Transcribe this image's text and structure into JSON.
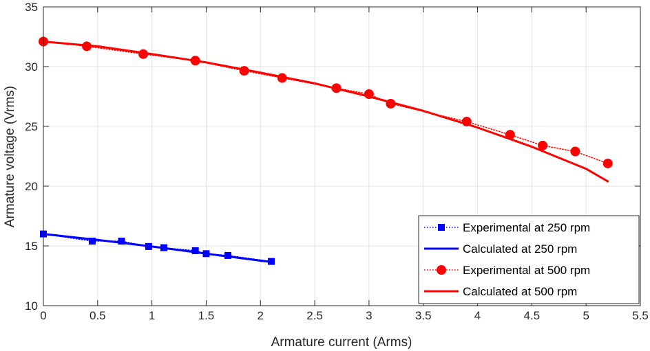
{
  "chart_data": {
    "type": "line",
    "xlabel": "Armature current (Arms)",
    "ylabel": "Armature voltage (Vrms)",
    "xlim": [
      0,
      5.5
    ],
    "ylim": [
      10,
      35
    ],
    "xticks": [
      0,
      0.5,
      1,
      1.5,
      2,
      2.5,
      3,
      3.5,
      4,
      4.5,
      5,
      5.5
    ],
    "xtick_labels": [
      "0",
      "0.5",
      "1",
      "1.5",
      "2",
      "2.5",
      "3",
      "3.5",
      "4",
      "4.5",
      "5",
      "5.5"
    ],
    "yticks": [
      10,
      15,
      20,
      25,
      30,
      35
    ],
    "ytick_labels": [
      "10",
      "15",
      "20",
      "25",
      "30",
      "35"
    ],
    "grid": true,
    "legend_position": "bottom-right",
    "series": [
      {
        "name": "Experimental at 250 rpm",
        "color": "#0000ff",
        "marker": "square",
        "line_style": "dotted",
        "x": [
          0,
          0.45,
          0.72,
          0.97,
          1.11,
          1.4,
          1.5,
          1.7,
          2.1
        ],
        "y": [
          16.0,
          15.4,
          15.4,
          14.95,
          14.85,
          14.6,
          14.35,
          14.2,
          13.7
        ]
      },
      {
        "name": "Calculated at 250 rpm",
        "color": "#0000ff",
        "marker": "none",
        "line_style": "solid",
        "x": [
          0,
          0.5,
          1.0,
          1.5,
          2.1
        ],
        "y": [
          16.0,
          15.5,
          14.95,
          14.35,
          13.65
        ]
      },
      {
        "name": "Experimental at 500 rpm",
        "color": "#ff0000",
        "marker": "circle",
        "line_style": "dotted",
        "x": [
          0,
          0.4,
          0.92,
          1.4,
          1.85,
          2.2,
          2.7,
          3.0,
          3.2,
          3.9,
          4.3,
          4.6,
          4.9,
          5.2
        ],
        "y": [
          32.1,
          31.7,
          31.05,
          30.5,
          29.65,
          29.05,
          28.2,
          27.7,
          26.9,
          25.4,
          24.3,
          23.4,
          22.9,
          21.9
        ]
      },
      {
        "name": "Calculated at 500 rpm",
        "color": "#ff0000",
        "marker": "none",
        "line_style": "solid",
        "x": [
          0,
          0.5,
          1.0,
          1.5,
          2.0,
          2.5,
          3.0,
          3.5,
          4.0,
          4.5,
          5.0,
          5.2
        ],
        "y": [
          32.1,
          31.7,
          31.05,
          30.35,
          29.5,
          28.6,
          27.5,
          26.3,
          24.9,
          23.3,
          21.45,
          20.4
        ]
      }
    ]
  }
}
